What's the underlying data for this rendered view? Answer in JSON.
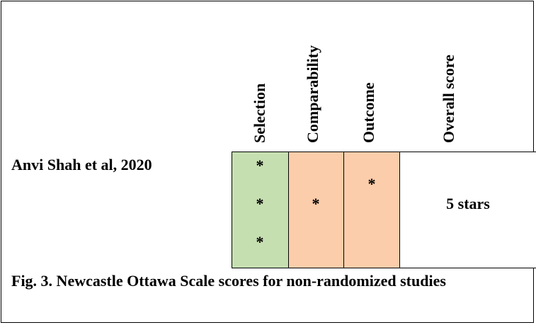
{
  "table": {
    "columns": [
      "Selection",
      "Comparability",
      "Outcome",
      "Overall score"
    ],
    "rows": [
      {
        "study": "Anvi Shah et al, 2020",
        "selection": "*",
        "comparability": "*",
        "outcome": "*",
        "overall": "5 stars",
        "selection_stars": 3,
        "comparability_stars": 1,
        "outcome_stars": 1
      }
    ],
    "colors": {
      "selection_fill": "#c6dfb1",
      "comparability_fill": "#fbcdaa",
      "outcome_fill": "#fbcdaa",
      "overall_fill": "#ffffff"
    }
  },
  "caption": "Fig. 3.  Newcastle Ottawa Scale scores for non-randomized studies"
}
